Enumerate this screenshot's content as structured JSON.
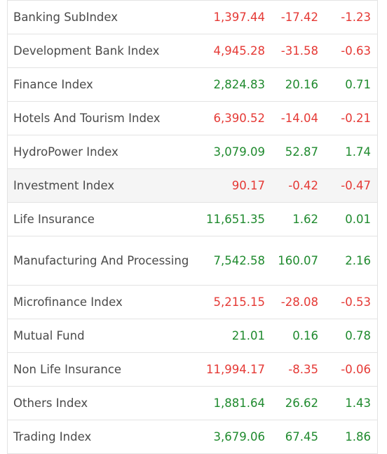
{
  "rows": [
    {
      "name": "Banking SubIndex",
      "value": "1,397.44",
      "change": "-17.42",
      "percent": "-1.23",
      "direction": "down"
    },
    {
      "name": "Development Bank Index",
      "value": "4,945.28",
      "change": "-31.58",
      "percent": "-0.63",
      "direction": "down"
    },
    {
      "name": "Finance Index",
      "value": "2,824.83",
      "change": "20.16",
      "percent": "0.71",
      "direction": "up"
    },
    {
      "name": "Hotels And Tourism Index",
      "value": "6,390.52",
      "change": "-14.04",
      "percent": "-0.21",
      "direction": "down"
    },
    {
      "name": "HydroPower Index",
      "value": "3,079.09",
      "change": "52.87",
      "percent": "1.74",
      "direction": "up"
    },
    {
      "name": "Investment Index",
      "value": "90.17",
      "change": "-0.42",
      "percent": "-0.47",
      "direction": "down"
    },
    {
      "name": "Life Insurance",
      "value": "11,651.35",
      "change": "1.62",
      "percent": "0.01",
      "direction": "up"
    },
    {
      "name": "Manufacturing And Processing",
      "value": "7,542.58",
      "change": "160.07",
      "percent": "2.16",
      "direction": "up"
    },
    {
      "name": "Microfinance Index",
      "value": "5,215.15",
      "change": "-28.08",
      "percent": "-0.53",
      "direction": "down"
    },
    {
      "name": "Mutual Fund",
      "value": "21.01",
      "change": "0.16",
      "percent": "0.78",
      "direction": "up"
    },
    {
      "name": "Non Life Insurance",
      "value": "11,994.17",
      "change": "-8.35",
      "percent": "-0.06",
      "direction": "down"
    },
    {
      "name": "Others Index",
      "value": "1,881.64",
      "change": "26.62",
      "percent": "1.43",
      "direction": "up"
    },
    {
      "name": "Trading Index",
      "value": "3,679.06",
      "change": "67.45",
      "percent": "1.86",
      "direction": "up"
    }
  ],
  "colors": {
    "up": "#1f8a2e",
    "down": "#e53935",
    "label": "#4a4a4a",
    "highlight_row_bg": "#f5f5f5"
  }
}
